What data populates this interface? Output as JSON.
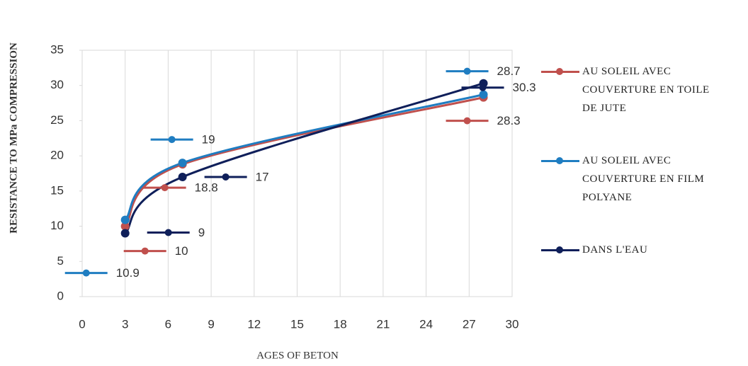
{
  "chart_data": {
    "type": "line",
    "x_label": "AGES OF BETON",
    "y_label": "RESISTANCE  TO MPa COMPRESSION",
    "x": [
      3,
      7,
      28
    ],
    "series": [
      {
        "name": "AU SOLEIL  AVEC COUVERTURE  EN TOILE DE JUTE",
        "color": "#c0504d",
        "values": [
          10,
          18.8,
          28.3
        ]
      },
      {
        "name": "AU SOLEIL  AVEC COUVERTURE  EN FILM POLYANE",
        "color": "#1f7dc1",
        "values": [
          10.9,
          19,
          28.7
        ]
      },
      {
        "name": "DANS L'EAU",
        "color": "#0f1f5a",
        "values": [
          9,
          17,
          30.3
        ]
      }
    ],
    "xlim": [
      0,
      30
    ],
    "xticks": [
      0,
      3,
      6,
      9,
      12,
      15,
      18,
      21,
      24,
      27,
      30
    ],
    "ylim": [
      0,
      35
    ],
    "yticks": [
      0,
      5,
      10,
      15,
      20,
      25,
      30,
      35
    ],
    "grid": true,
    "smooth": true,
    "legend": "right"
  }
}
